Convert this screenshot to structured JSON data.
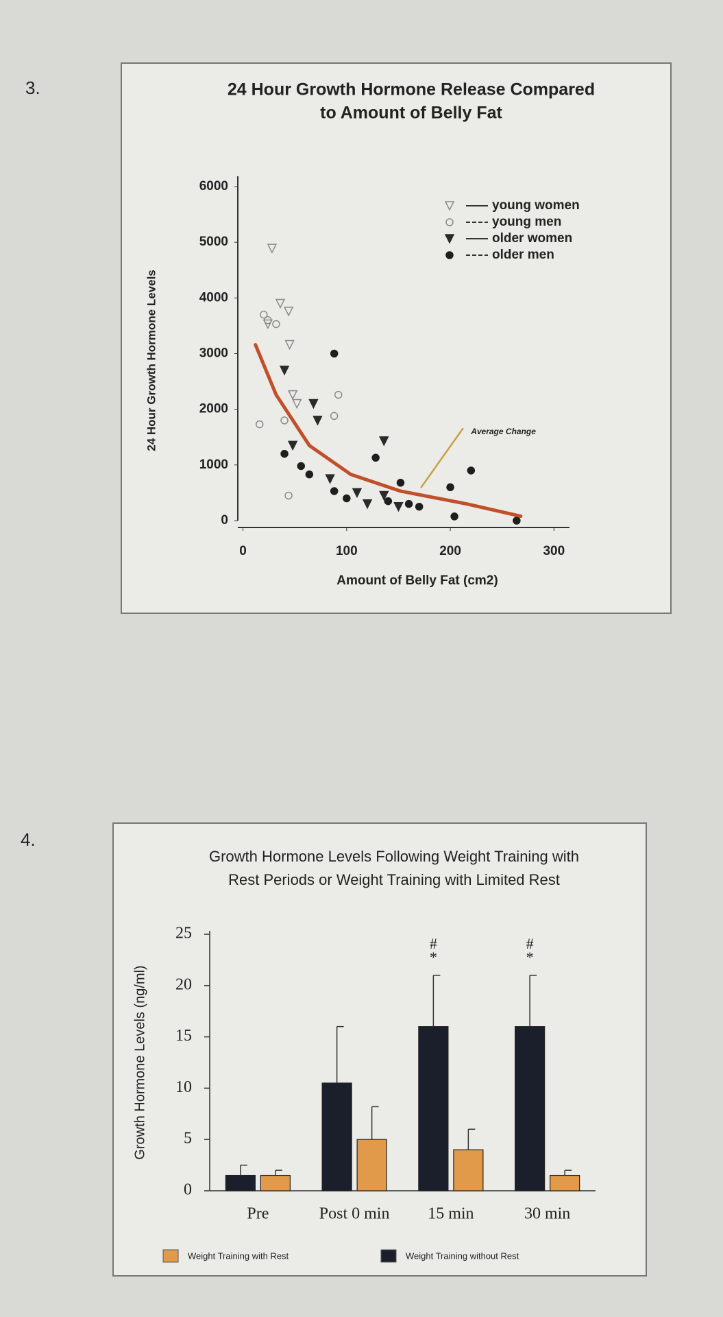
{
  "labels": [
    "3.",
    "4."
  ],
  "chart_data": [
    {
      "type": "scatter",
      "title": [
        "24 Hour Growth Hormone Release Compared",
        "to Amount of Belly Fat"
      ],
      "x_label": "Amount of Belly Fat (cm2)",
      "y_label": "24 Hour Growth Hormone Levels",
      "xlim": [
        -5,
        315
      ],
      "xticks": [
        0,
        100,
        200,
        300
      ],
      "ylim": [
        0,
        6000
      ],
      "yticks": [
        0,
        1000,
        2000,
        3000,
        4000,
        5000,
        6000
      ],
      "legend": "top-right",
      "series": [
        {
          "name": "young women",
          "marker": "triangle-open",
          "color": "#8a8a8a",
          "x": [
            28,
            44,
            45,
            48,
            24,
            36,
            52
          ],
          "values": [
            4890,
            3760,
            3160,
            2260,
            3530,
            3900,
            2100
          ]
        },
        {
          "name": "young men",
          "marker": "circle-open",
          "color": "#8a8a8a",
          "x": [
            24,
            32,
            40,
            92,
            16,
            44,
            88,
            20
          ],
          "values": [
            3600,
            3530,
            1800,
            2260,
            1730,
            450,
            1880,
            3700
          ]
        },
        {
          "name": "older women",
          "marker": "triangle",
          "color": "#2a2a2a",
          "x": [
            40,
            68,
            72,
            136,
            136,
            120,
            84,
            48,
            150,
            110
          ],
          "values": [
            2700,
            2100,
            1800,
            1430,
            450,
            300,
            750,
            1350,
            250,
            500
          ]
        },
        {
          "name": "older men",
          "marker": "circle",
          "color": "#1e1e1e",
          "x": [
            88,
            128,
            40,
            56,
            88,
            152,
            160,
            204,
            220,
            200,
            264,
            64,
            100,
            140,
            170
          ],
          "values": [
            3000,
            1130,
            1200,
            980,
            530,
            680,
            300,
            75,
            900,
            600,
            0,
            830,
            400,
            350,
            250
          ]
        }
      ],
      "curve": {
        "color": "#c0502a",
        "x": [
          12,
          32,
          64,
          104,
          152,
          216,
          268
        ],
        "values": [
          3160,
          2260,
          1350,
          830,
          530,
          300,
          80
        ]
      },
      "annotation": {
        "text": "Average Change",
        "color": "#c8a040",
        "x": [
          172,
          212
        ],
        "values": [
          600,
          1650
        ]
      }
    },
    {
      "type": "bar",
      "title": [
        "Growth Hormone Levels Following Weight Training with",
        "Rest Periods or Weight Training with Limited Rest"
      ],
      "y_label": "Growth Hormone Levels (ng/ml)",
      "categories": [
        "Pre",
        "Post 0 min",
        "15 min",
        "30 min"
      ],
      "ylim": [
        0,
        25
      ],
      "yticks": [
        0,
        5,
        10,
        15,
        20,
        25
      ],
      "legend": "bottom",
      "series": [
        {
          "name": "Weight Training with Rest",
          "color": "#e09a4a",
          "values": [
            1.5,
            5,
            4,
            1.5
          ],
          "errors": [
            0.5,
            3.2,
            2,
            0.5
          ]
        },
        {
          "name": "Weight Training without Rest",
          "color": "#1b1e2b",
          "values": [
            1.5,
            10.5,
            16,
            16
          ],
          "errors": [
            1,
            5.5,
            5,
            5
          ],
          "symbols": [
            null,
            null,
            [
              "#",
              "*"
            ],
            [
              "#",
              "*"
            ]
          ]
        }
      ]
    }
  ]
}
